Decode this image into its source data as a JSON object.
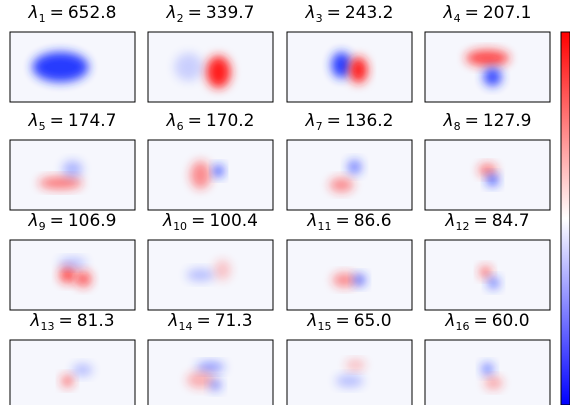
{
  "symbol": "λ",
  "relation": "=",
  "panels": [
    {
      "subscript": "1",
      "value": "652.8"
    },
    {
      "subscript": "2",
      "value": "339.7"
    },
    {
      "subscript": "3",
      "value": "243.2"
    },
    {
      "subscript": "4",
      "value": "207.1"
    },
    {
      "subscript": "5",
      "value": "174.7"
    },
    {
      "subscript": "6",
      "value": "170.2"
    },
    {
      "subscript": "7",
      "value": "136.2"
    },
    {
      "subscript": "8",
      "value": "127.9"
    },
    {
      "subscript": "9",
      "value": "106.9"
    },
    {
      "subscript": "10",
      "value": "100.4"
    },
    {
      "subscript": "11",
      "value": "86.6"
    },
    {
      "subscript": "12",
      "value": "84.7"
    },
    {
      "subscript": "13",
      "value": "81.3"
    },
    {
      "subscript": "14",
      "value": "71.3"
    },
    {
      "subscript": "15",
      "value": "65.0"
    },
    {
      "subscript": "16",
      "value": "60.0"
    }
  ]
}
